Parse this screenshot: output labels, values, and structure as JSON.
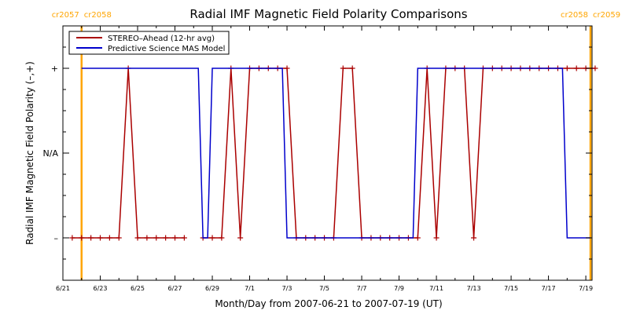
{
  "chart_data": {
    "type": "line",
    "title": "Radial IMF Magnetic Field Polarity Comparisons",
    "xlabel": "Month/Day from 2007-06-21 to 2007-07-19 (UT)",
    "ylabel": "Radial IMF Magnetic Field Polarity (–,+)",
    "xlim": [
      "2007-06-21",
      "2007-07-19"
    ],
    "ylim": [
      -1.5,
      1.5
    ],
    "x_ticks": [
      {
        "date": "2007-06-21",
        "label": "6/21"
      },
      {
        "date": "2007-06-23",
        "label": "6/23"
      },
      {
        "date": "2007-06-25",
        "label": "6/25"
      },
      {
        "date": "2007-06-27",
        "label": "6/27"
      },
      {
        "date": "2007-06-29",
        "label": "6/29"
      },
      {
        "date": "2007-07-01",
        "label": "7/1"
      },
      {
        "date": "2007-07-03",
        "label": "7/3"
      },
      {
        "date": "2007-07-05",
        "label": "7/5"
      },
      {
        "date": "2007-07-07",
        "label": "7/7"
      },
      {
        "date": "2007-07-09",
        "label": "7/9"
      },
      {
        "date": "2007-07-11",
        "label": "7/11"
      },
      {
        "date": "2007-07-13",
        "label": "7/13"
      },
      {
        "date": "2007-07-15",
        "label": "7/15"
      },
      {
        "date": "2007-07-17",
        "label": "7/17"
      },
      {
        "date": "2007-07-19",
        "label": "7/19"
      }
    ],
    "y_ticks": [
      {
        "value": 1,
        "label": "+"
      },
      {
        "value": 0,
        "label": "N/A"
      },
      {
        "value": -1,
        "label": "–"
      }
    ],
    "grid": false,
    "legend_position": "top-left",
    "rotations": [
      {
        "date": "2007-06-22T00:00",
        "left_label": "cr2057",
        "right_label": "cr2058",
        "color": "#ffa500"
      },
      {
        "date": "2007-07-19T06:00",
        "left_label": "cr2058",
        "right_label": "cr2059",
        "color": "#ffa500"
      }
    ],
    "series": [
      {
        "name": "STEREO–Ahead (12-hr avg)",
        "color": "#aa0000",
        "marker": "plus",
        "segments": [
          {
            "x": [
              "2007-06-21T12:00",
              "2007-06-22T00:00",
              "2007-06-22T12:00",
              "2007-06-23T00:00",
              "2007-06-23T12:00",
              "2007-06-24T00:00",
              "2007-06-24T12:00",
              "2007-06-25T00:00",
              "2007-06-25T12:00",
              "2007-06-26T00:00",
              "2007-06-26T12:00",
              "2007-06-27T00:00",
              "2007-06-27T12:00"
            ],
            "y": [
              -1,
              -1,
              -1,
              -1,
              -1,
              -1,
              1,
              -1,
              -1,
              -1,
              -1,
              -1,
              -1
            ]
          },
          {
            "x": [
              "2007-06-28T12:00",
              "2007-06-29T00:00",
              "2007-06-29T12:00",
              "2007-06-30T00:00",
              "2007-06-30T12:00",
              "2007-07-01T00:00",
              "2007-07-01T12:00",
              "2007-07-02T00:00",
              "2007-07-02T12:00",
              "2007-07-03T00:00",
              "2007-07-03T12:00",
              "2007-07-04T00:00",
              "2007-07-04T12:00",
              "2007-07-05T00:00",
              "2007-07-05T12:00",
              "2007-07-06T00:00",
              "2007-07-06T12:00",
              "2007-07-07T00:00",
              "2007-07-07T12:00",
              "2007-07-08T00:00",
              "2007-07-08T12:00",
              "2007-07-09T00:00",
              "2007-07-09T12:00",
              "2007-07-10T00:00",
              "2007-07-10T12:00",
              "2007-07-11T00:00",
              "2007-07-11T12:00",
              "2007-07-12T00:00",
              "2007-07-12T12:00",
              "2007-07-13T00:00",
              "2007-07-13T12:00",
              "2007-07-14T00:00",
              "2007-07-14T12:00",
              "2007-07-15T00:00",
              "2007-07-15T12:00",
              "2007-07-16T00:00",
              "2007-07-16T12:00",
              "2007-07-17T00:00",
              "2007-07-17T12:00",
              "2007-07-18T00:00",
              "2007-07-18T12:00",
              "2007-07-19T00:00",
              "2007-07-19T12:00"
            ],
            "y": [
              -1,
              -1,
              -1,
              1,
              -1,
              1,
              1,
              1,
              1,
              1,
              -1,
              -1,
              -1,
              -1,
              -1,
              1,
              1,
              -1,
              -1,
              -1,
              -1,
              -1,
              -1,
              -1,
              1,
              -1,
              1,
              1,
              1,
              -1,
              1,
              1,
              1,
              1,
              1,
              1,
              1,
              1,
              1,
              1,
              1,
              1,
              1
            ]
          }
        ]
      },
      {
        "name": "Predictive Science MAS Model",
        "color": "#0000cc",
        "marker": "none",
        "segments": [
          {
            "x": [
              "2007-06-22T00:00",
              "2007-06-28T06:00",
              "2007-06-28T12:00",
              "2007-06-28T18:00",
              "2007-06-29T00:00",
              "2007-07-02T18:00",
              "2007-07-03T00:00",
              "2007-07-09T18:00",
              "2007-07-10T00:00",
              "2007-07-17T18:00",
              "2007-07-18T00:00",
              "2007-07-19T06:00"
            ],
            "y": [
              1,
              1,
              -1,
              -1,
              1,
              1,
              -1,
              -1,
              1,
              1,
              -1,
              -1
            ]
          }
        ]
      }
    ]
  }
}
